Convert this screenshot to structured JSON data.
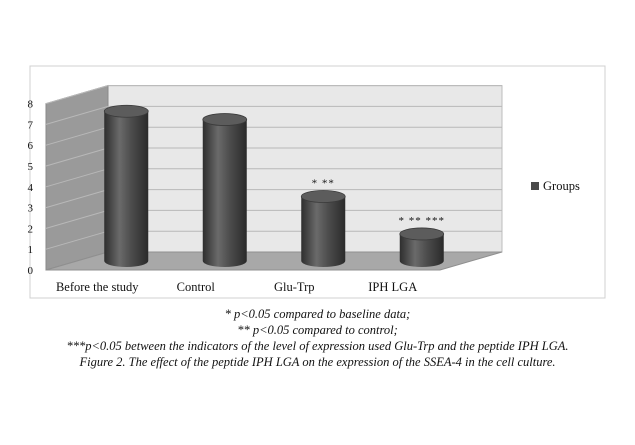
{
  "chart_data": {
    "type": "bar",
    "style": "3d-cylinder",
    "categories": [
      "Before the study",
      "Control",
      "Glu-Trp",
      "IPH LGA"
    ],
    "series": [
      {
        "name": "Groups",
        "values": [
          7.2,
          6.8,
          3.1,
          1.3
        ],
        "color": "#4a4a4a"
      }
    ],
    "annotations": [
      "",
      "",
      "* **",
      "* ** ***"
    ],
    "ylim": [
      0,
      8
    ],
    "yticks": [
      "0",
      "1",
      "2",
      "3",
      "4",
      "5",
      "6",
      "7",
      "8"
    ],
    "grid": true,
    "legend_position": "right"
  },
  "caption": {
    "lines": [
      "* p<0.05 compared to baseline data;",
      "** p<0.05 compared to control;",
      "***p<0.05 between the indicators of the level of expression used Glu-Trp and the peptide IPH LGA.",
      "Figure 2. The effect of the peptide IPH LGA on the expression of the SSEA-4 in the cell culture."
    ]
  }
}
